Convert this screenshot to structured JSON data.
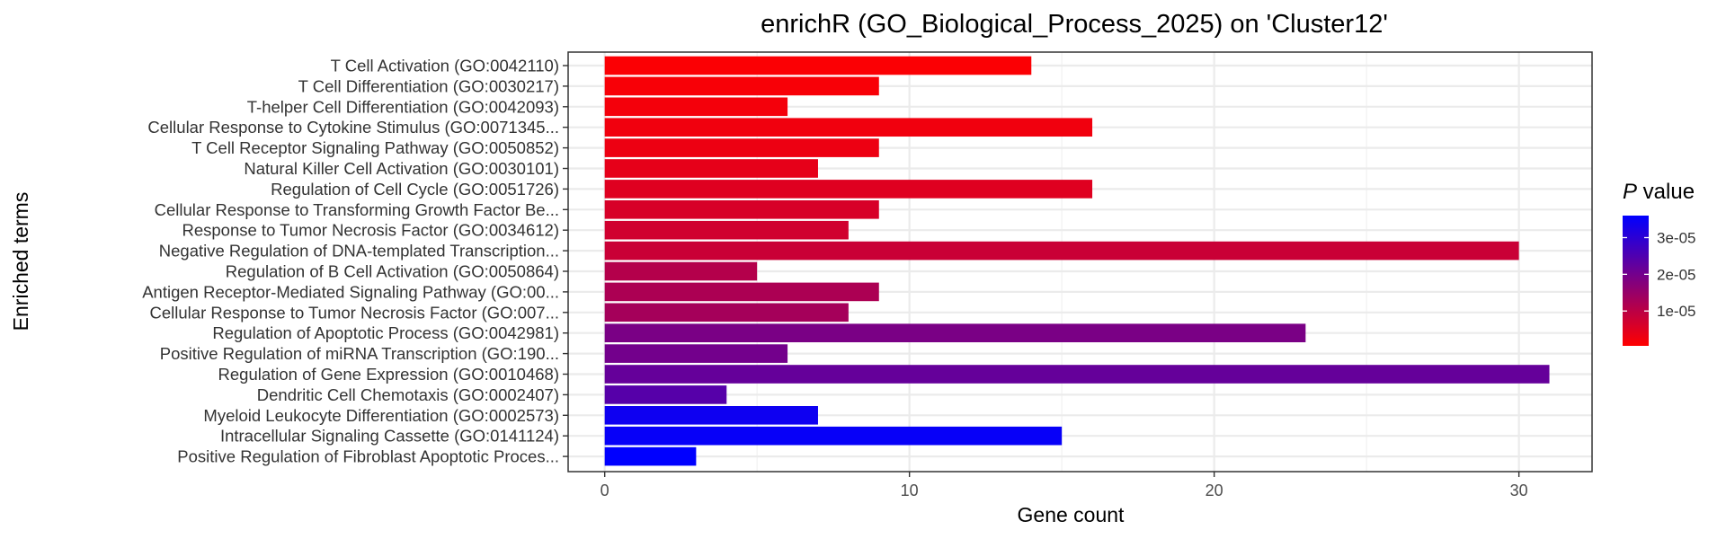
{
  "chart_data": {
    "type": "bar",
    "orientation": "horizontal",
    "title": "enrichR (GO_Biological_Process_2025) on 'Cluster12'",
    "xlabel": "Gene count",
    "ylabel": "Enriched terms",
    "xlim": [
      -1.2,
      32.4
    ],
    "xticks": [
      0,
      10,
      20,
      30
    ],
    "grid": true,
    "legend": {
      "title_italic": "P",
      "title_rest": " value",
      "ticks": [
        "1e-05",
        "2e-05",
        "3e-05"
      ],
      "tick_values": [
        1e-05,
        2e-05,
        3e-05
      ],
      "range": [
        5e-07,
        3.6e-05
      ],
      "color_low": "#FF0000",
      "color_high": "#0000FF",
      "placement": "right"
    },
    "categories": [
      "T Cell Activation (GO:0042110)",
      "T Cell Differentiation (GO:0030217)",
      "T-helper Cell Differentiation (GO:0042093)",
      "Cellular Response to Cytokine Stimulus (GO:0071345...",
      "T Cell Receptor Signaling Pathway (GO:0050852)",
      "Natural Killer Cell Activation (GO:0030101)",
      "Regulation of Cell Cycle (GO:0051726)",
      "Cellular Response to Transforming Growth Factor Be...",
      "Response to Tumor Necrosis Factor (GO:0034612)",
      "Negative Regulation of DNA-templated Transcription...",
      "Regulation of B Cell Activation (GO:0050864)",
      "Antigen Receptor-Mediated Signaling Pathway (GO:00...",
      "Cellular Response to Tumor Necrosis Factor (GO:007...",
      "Regulation of Apoptotic Process (GO:0042981)",
      "Positive Regulation of miRNA Transcription (GO:190...",
      "Regulation of Gene Expression (GO:0010468)",
      "Dendritic Cell Chemotaxis (GO:0002407)",
      "Myeloid Leukocyte Differentiation (GO:0002573)",
      "Intracellular Signaling Cassette (GO:0141124)",
      "Positive Regulation of Fibroblast Apoptotic Proces..."
    ],
    "values": [
      14,
      9,
      6,
      16,
      9,
      7,
      16,
      9,
      8,
      30,
      5,
      9,
      8,
      23,
      6,
      31,
      4,
      7,
      15,
      3
    ],
    "p_values": [
      1e-06,
      1.5e-06,
      2e-06,
      2.5e-06,
      3e-06,
      4e-06,
      5e-06,
      6e-06,
      7e-06,
      8e-06,
      1.1e-05,
      1.2e-05,
      1.3e-05,
      1.9e-05,
      2e-05,
      2.2e-05,
      2.4e-05,
      3.4e-05,
      3.5e-05,
      3.6e-05
    ]
  }
}
